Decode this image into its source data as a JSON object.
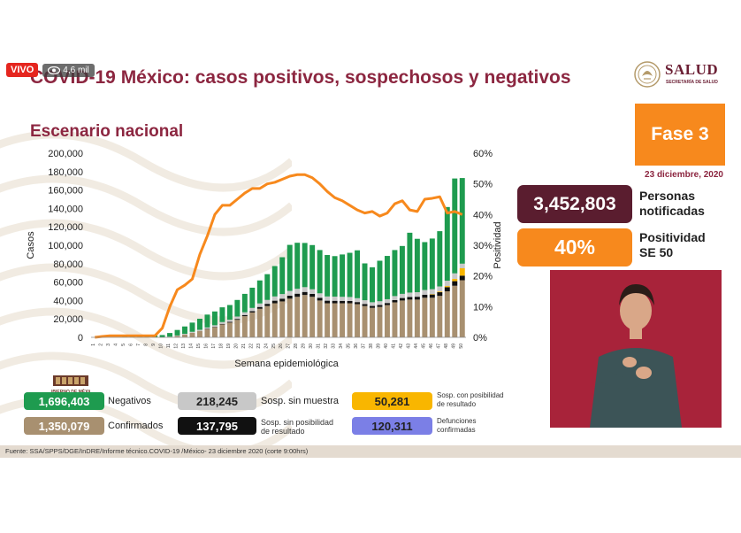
{
  "live": {
    "badge": "VIVO",
    "viewers": "4,6 mil"
  },
  "header": {
    "title": "COVID-19 México: casos positivos, sospechosos y negativos",
    "logo_text": "SALUD",
    "logo_sub": "SECRETARÍA DE SALUD"
  },
  "subtitle": "Escenario nacional",
  "phase": "Fase 3",
  "date": "23 diciembre, 2020",
  "stats": {
    "notified_value": "3,452,803",
    "notified_label_1": "Personas",
    "notified_label_2": "notificadas",
    "positivity_value": "40%",
    "positivity_label_1": "Positividad",
    "positivity_label_2": "SE 50"
  },
  "legend": {
    "negativos_value": "1,696,403",
    "negativos_label": "Negativos",
    "confirmados_value": "1,350,079",
    "confirmados_label": "Confirmados",
    "sin_muestra_value": "218,245",
    "sin_muestra_label": "Sosp. sin muestra",
    "sin_posibilidad_value": "137,795",
    "sin_posibilidad_label_1": "Sosp. sin posibilidad",
    "sin_posibilidad_label_2": "de resultado",
    "con_posibilidad_value": "50,281",
    "con_posibilidad_label_1": "Sosp. con posibilidad",
    "con_posibilidad_label_2": "de resultado",
    "defunciones_value": "120,311",
    "defunciones_label_1": "Defunciones",
    "defunciones_label_2": "confirmadas",
    "gobierno_text": "GOBIERNO DE MÉXICO"
  },
  "source": "Fuente: SSA/SPPS/DGE/InDRE/Informe técnico.COVID-19 /México- 23 diciembre 2020 (corte 9:00hrs)",
  "colors": {
    "title": "#8c2640",
    "orange": "#f7891d",
    "wine": "#5a1d2f",
    "negativos": "#1e9b4f",
    "confirmados": "#a89070",
    "sin_muestra": "#c8c8c8",
    "sin_posibilidad": "#111111",
    "con_posibilidad": "#f9b600",
    "defunciones": "#7b7fe6"
  },
  "chart_data": {
    "type": "bar",
    "xlabel": "Semana epidemiológica",
    "ylabel": "Casos",
    "y2label": "Positividad",
    "ylim": [
      0,
      200000
    ],
    "y2lim": [
      0,
      60
    ],
    "yticks": [
      "0",
      "20,000",
      "40,000",
      "60,000",
      "80,000",
      "100,000",
      "120,000",
      "140,000",
      "160,000",
      "180,000",
      "200,000"
    ],
    "y2ticks": [
      "0%",
      "10%",
      "20%",
      "30%",
      "40%",
      "50%",
      "60%"
    ],
    "categories": [
      "1",
      "2",
      "3",
      "4",
      "5",
      "6",
      "7",
      "8",
      "9",
      "10",
      "11",
      "12",
      "13",
      "14",
      "15",
      "16",
      "17",
      "18",
      "19",
      "20",
      "21",
      "22",
      "23",
      "24",
      "25",
      "26",
      "27",
      "28",
      "29",
      "30",
      "31",
      "32",
      "33",
      "34",
      "35",
      "36",
      "37",
      "38",
      "39",
      "40",
      "41",
      "42",
      "43",
      "44",
      "45",
      "46",
      "47",
      "48",
      "49",
      "50"
    ],
    "series": [
      {
        "name": "Confirmados",
        "color": "#a89070",
        "values": [
          0,
          0,
          0,
          0,
          0,
          0,
          0,
          0,
          0,
          0,
          500,
          1500,
          3000,
          5000,
          7000,
          9000,
          11000,
          14000,
          16000,
          19000,
          23000,
          27000,
          31000,
          34000,
          37000,
          39000,
          42000,
          44000,
          46000,
          44000,
          40000,
          37000,
          37000,
          37000,
          37000,
          36000,
          34000,
          32000,
          33000,
          35000,
          38000,
          40000,
          41000,
          41000,
          43000,
          43000,
          45000,
          50000,
          56000,
          62000
        ]
      },
      {
        "name": "Sosp. sin posibilidad de resultado",
        "color": "#111111",
        "values": [
          0,
          0,
          0,
          0,
          0,
          0,
          0,
          0,
          0,
          0,
          0,
          0,
          0,
          0,
          0,
          200,
          400,
          600,
          800,
          1000,
          1200,
          1500,
          2000,
          2400,
          2800,
          3000,
          3200,
          3400,
          3300,
          3200,
          3000,
          2800,
          2700,
          2600,
          2500,
          2300,
          2200,
          2100,
          2200,
          2300,
          2500,
          2700,
          2900,
          3100,
          3300,
          3500,
          4000,
          4500,
          5000,
          5000
        ]
      },
      {
        "name": "Sosp. con posibilidad de resultado",
        "color": "#f9b600",
        "values": [
          0,
          0,
          0,
          0,
          0,
          0,
          0,
          0,
          0,
          0,
          0,
          0,
          0,
          0,
          0,
          0,
          0,
          0,
          0,
          0,
          0,
          0,
          0,
          0,
          0,
          0,
          0,
          0,
          0,
          0,
          0,
          0,
          0,
          0,
          0,
          0,
          0,
          0,
          0,
          0,
          0,
          0,
          0,
          0,
          0,
          500,
          800,
          1200,
          2500,
          8000
        ]
      },
      {
        "name": "Sosp. sin muestra",
        "color": "#c8c8c8",
        "values": [
          0,
          0,
          0,
          0,
          0,
          0,
          0,
          0,
          0,
          0,
          200,
          500,
          800,
          1000,
          1200,
          1500,
          1700,
          2000,
          2300,
          2600,
          3000,
          3400,
          3800,
          4200,
          4600,
          5000,
          5200,
          5300,
          5200,
          5000,
          4800,
          4600,
          4500,
          4400,
          4300,
          4200,
          4100,
          4000,
          4000,
          4100,
          4300,
          4500,
          4700,
          4900,
          5100,
          5300,
          5500,
          5800,
          6000,
          5000
        ]
      },
      {
        "name": "Negativos",
        "color": "#1e9b4f",
        "values": [
          0,
          0,
          0,
          0,
          500,
          1000,
          1500,
          1800,
          2000,
          2500,
          4000,
          6000,
          8000,
          10000,
          12000,
          14000,
          15000,
          16000,
          16000,
          18000,
          20000,
          22000,
          25000,
          28000,
          33000,
          40000,
          50000,
          50000,
          48000,
          48000,
          47000,
          45000,
          44000,
          46000,
          48000,
          52000,
          40000,
          38000,
          44000,
          47000,
          50000,
          52000,
          65000,
          58000,
          52000,
          55000,
          60000,
          80000,
          103000,
          93000
        ]
      }
    ],
    "line": {
      "name": "Positividad",
      "color": "#f7891d",
      "values": [
        0,
        0.3,
        0.5,
        0.5,
        0.5,
        0.5,
        0.5,
        0.5,
        0.5,
        3,
        10,
        15.5,
        17,
        19,
        27,
        33,
        40,
        43,
        43,
        45,
        47,
        48.5,
        48.5,
        50,
        50.5,
        51.5,
        52.5,
        53,
        53,
        52,
        50,
        47.5,
        45.5,
        44.5,
        43,
        41.5,
        40.5,
        41,
        39.5,
        40.5,
        43.5,
        44.5,
        41.5,
        41,
        45,
        45.3,
        45.8,
        40.5,
        41,
        40
      ]
    }
  }
}
